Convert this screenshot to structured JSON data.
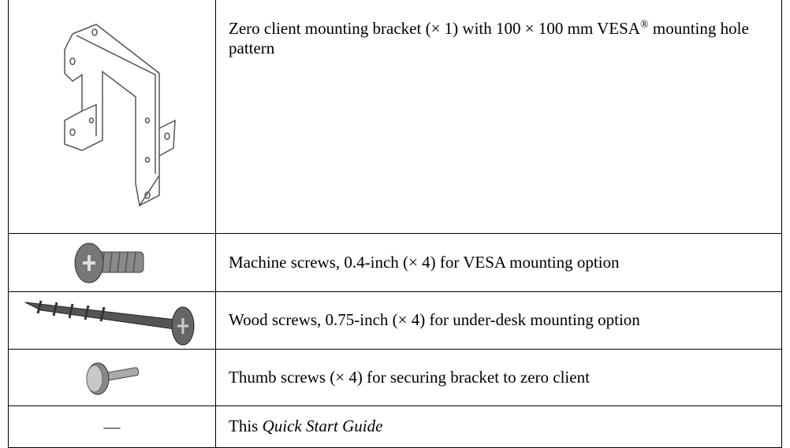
{
  "rows": [
    {
      "description": {
        "before": "Zero client mounting bracket (× 1) with 100 × 100 mm VESA",
        "superscript": "®",
        "after": " mounting hole pattern"
      }
    },
    {
      "description": "Machine screws, 0.4-inch (× 4) for VESA mounting option"
    },
    {
      "description": "Wood screws, 0.75-inch (× 4) for under-desk mounting option"
    },
    {
      "description": "Thumb screws (× 4) for securing bracket to zero client"
    },
    {
      "icon": "—",
      "description": {
        "before": "This ",
        "italic": "Quick Start Guide"
      }
    }
  ]
}
